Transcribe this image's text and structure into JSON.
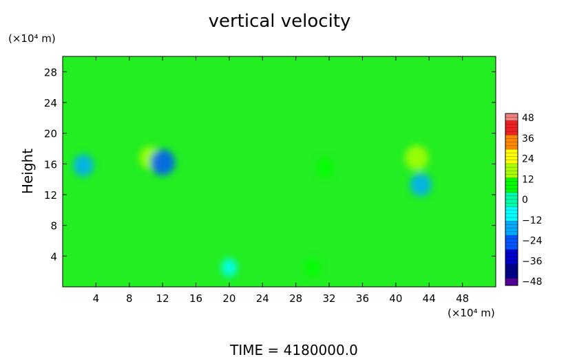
{
  "chart_data": {
    "type": "heatmap",
    "title": "vertical velocity",
    "xlabel": "",
    "ylabel": "Height",
    "x_unit": "(×10⁴ m)",
    "y_unit": "(×10⁴ m)",
    "xlim": [
      0,
      52
    ],
    "ylim": [
      0,
      30
    ],
    "x_ticks": [
      "4",
      "8",
      "12",
      "16",
      "20",
      "24",
      "28",
      "32",
      "36",
      "40",
      "44",
      "48"
    ],
    "y_ticks": [
      "4",
      "8",
      "12",
      "16",
      "20",
      "24",
      "28"
    ],
    "colorbar": {
      "range": [
        -48,
        48
      ],
      "ticks": [
        "48",
        "36",
        "24",
        "12",
        "0",
        "−12",
        "−24",
        "−36",
        "−48"
      ],
      "colors": [
        "#f08080",
        "#ee2222",
        "#ff8800",
        "#ffff00",
        "#aaff00",
        "#00ff00",
        "#00ffaa",
        "#00ffff",
        "#00aaff",
        "#0055ff",
        "#0000cc",
        "#000088",
        "#550099"
      ]
    },
    "background_color": "#22ee22",
    "features": [
      {
        "x": 2.5,
        "y": 15.8,
        "value": -12
      },
      {
        "x": 10.5,
        "y": 16.8,
        "value": 14
      },
      {
        "x": 12.0,
        "y": 16.2,
        "value": -20
      },
      {
        "x": 42.5,
        "y": 16.8,
        "value": 18
      },
      {
        "x": 43.0,
        "y": 13.3,
        "value": -14
      },
      {
        "x": 31.5,
        "y": 15.5,
        "value": 6
      },
      {
        "x": 20.0,
        "y": 2.5,
        "value": -4
      },
      {
        "x": 30.0,
        "y": 2.5,
        "value": 5
      }
    ]
  },
  "footer": {
    "time_label": "TIME  =  4180000.0"
  }
}
